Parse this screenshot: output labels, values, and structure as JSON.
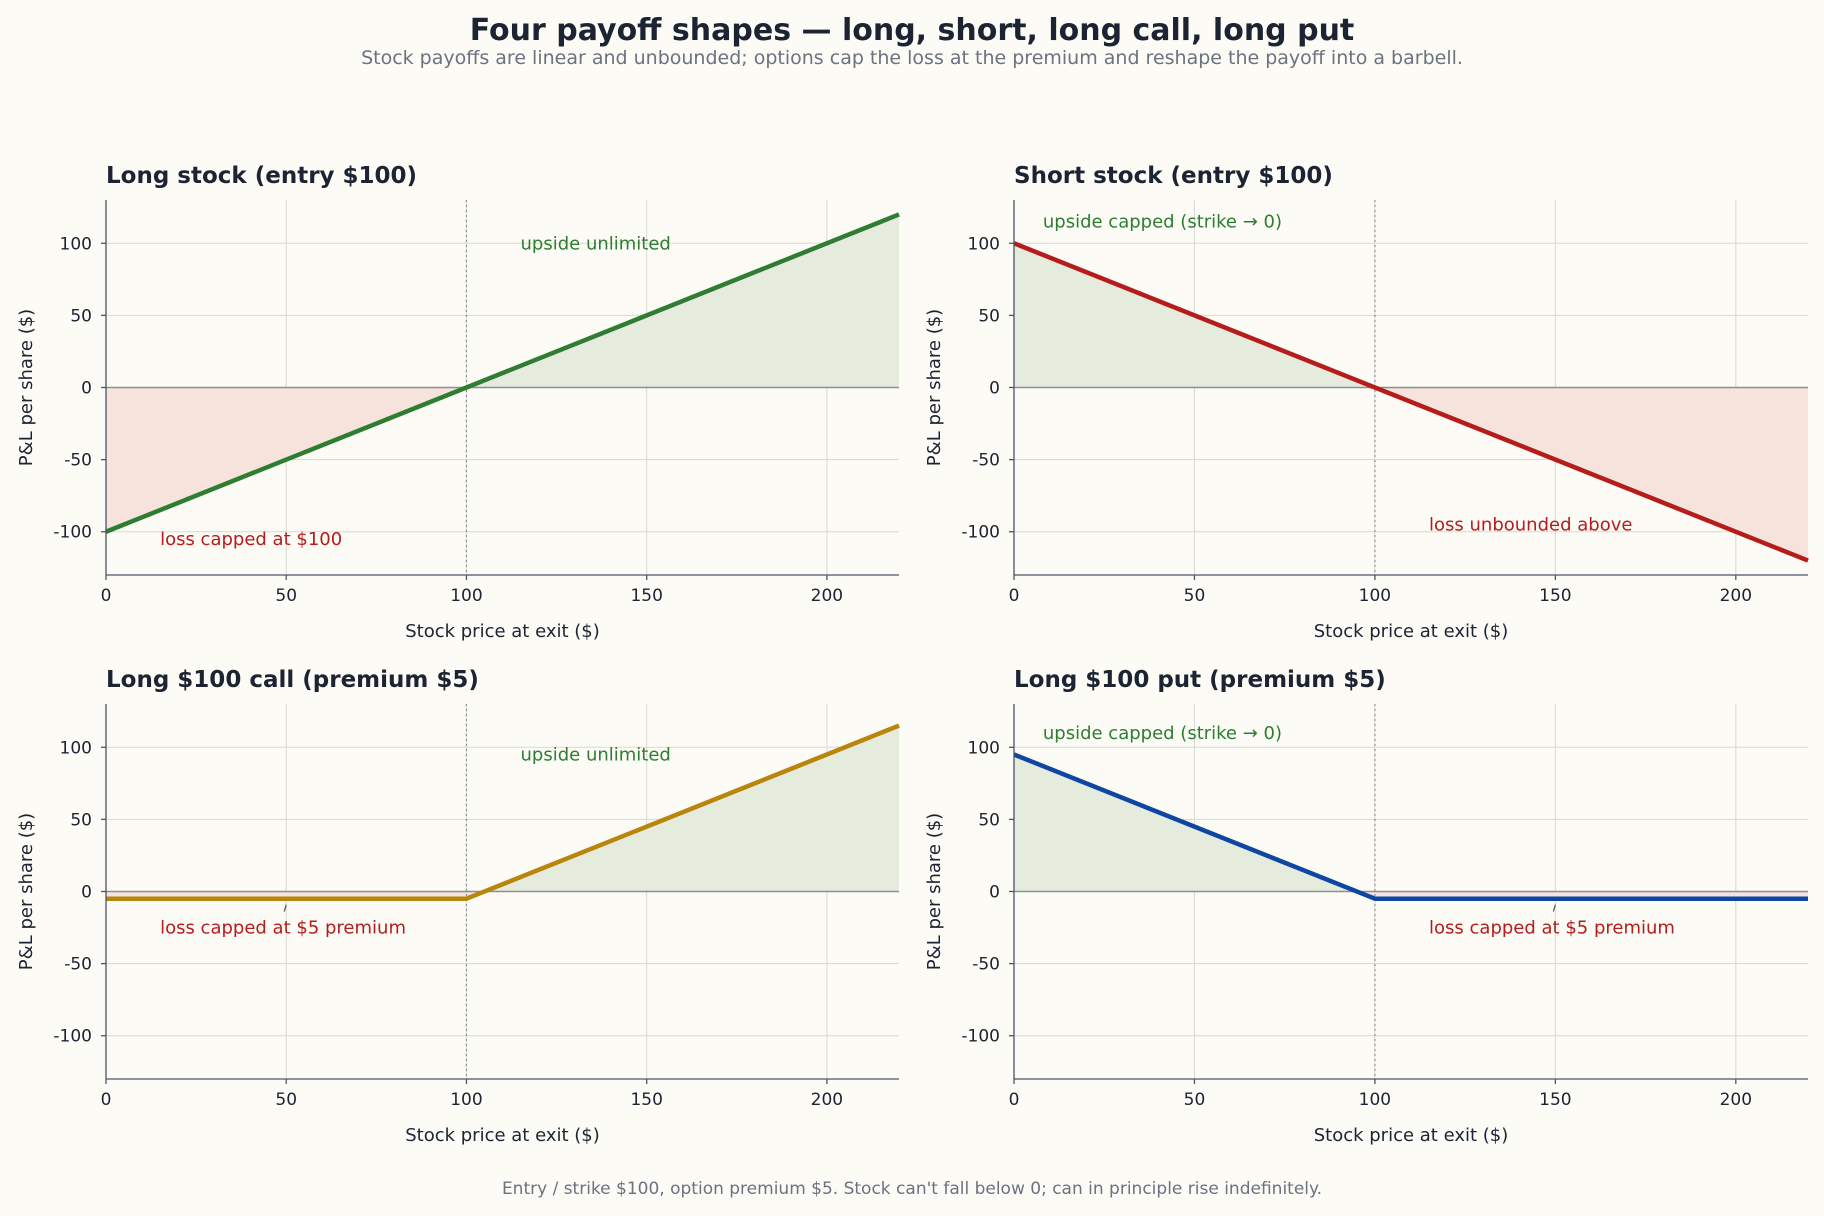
{
  "title": "Four payoff shapes — long, short, long call, long put",
  "subtitle": "Stock payoffs are linear and unbounded; options cap the loss at the premium and reshape the payoff into a barbell.",
  "footer": "Entry / strike $100, option premium $5. Stock can't fall below 0; can in principle rise indefinitely.",
  "colors": {
    "gain_fill": "#e5ecdd",
    "loss_fill": "#f6e3dc",
    "gain_text": "#2e7d32",
    "loss_text": "#b71c1c"
  },
  "chart_data": [
    {
      "type": "line",
      "title": "Long stock (entry $100)",
      "xlabel": "Stock price at exit ($)",
      "ylabel": "P&L per share ($)",
      "xlim": [
        0,
        220
      ],
      "ylim": [
        -130,
        130
      ],
      "xticks": [
        0,
        50,
        100,
        150,
        200
      ],
      "yticks": [
        -100,
        -50,
        0,
        50,
        100
      ],
      "grid": true,
      "color": "#2e7d32",
      "x": [
        0,
        100,
        220
      ],
      "y": [
        -100,
        0,
        120
      ],
      "reference_x": 100,
      "annotations": [
        {
          "text": "upside unlimited",
          "x": 115,
          "y": 100,
          "kind": "gain"
        },
        {
          "text": "loss capped at $100",
          "x": 15,
          "y": -105,
          "kind": "loss"
        }
      ]
    },
    {
      "type": "line",
      "title": "Short stock (entry $100)",
      "xlabel": "Stock price at exit ($)",
      "ylabel": "P&L per share ($)",
      "xlim": [
        0,
        220
      ],
      "ylim": [
        -130,
        130
      ],
      "xticks": [
        0,
        50,
        100,
        150,
        200
      ],
      "yticks": [
        -100,
        -50,
        0,
        50,
        100
      ],
      "grid": true,
      "color": "#b71c1c",
      "x": [
        0,
        100,
        220
      ],
      "y": [
        100,
        0,
        -120
      ],
      "reference_x": 100,
      "annotations": [
        {
          "text": "upside capped (strike → 0)",
          "x": 8,
          "y": 115,
          "kind": "gain"
        },
        {
          "text": "loss unbounded above",
          "x": 115,
          "y": -95,
          "kind": "loss"
        }
      ]
    },
    {
      "type": "line",
      "title": "Long $100 call (premium $5)",
      "xlabel": "Stock price at exit ($)",
      "ylabel": "P&L per share ($)",
      "xlim": [
        0,
        220
      ],
      "ylim": [
        -130,
        130
      ],
      "xticks": [
        0,
        50,
        100,
        150,
        200
      ],
      "yticks": [
        -100,
        -50,
        0,
        50,
        100
      ],
      "grid": true,
      "color": "#b8860b",
      "x": [
        0,
        100,
        220
      ],
      "y": [
        -5,
        -5,
        115
      ],
      "reference_x": 100,
      "annotations": [
        {
          "text": "upside unlimited",
          "x": 115,
          "y": 95,
          "kind": "gain"
        },
        {
          "text": "loss capped at $5 premium",
          "x": 15,
          "y": -25,
          "kind": "loss",
          "arrow_to": [
            50,
            -5
          ]
        }
      ]
    },
    {
      "type": "line",
      "title": "Long $100 put (premium $5)",
      "xlabel": "Stock price at exit ($)",
      "ylabel": "P&L per share ($)",
      "xlim": [
        0,
        220
      ],
      "ylim": [
        -130,
        130
      ],
      "xticks": [
        0,
        50,
        100,
        150,
        200
      ],
      "yticks": [
        -100,
        -50,
        0,
        50,
        100
      ],
      "grid": true,
      "color": "#0d47a1",
      "x": [
        0,
        100,
        220
      ],
      "y": [
        95,
        -5,
        -5
      ],
      "reference_x": 100,
      "annotations": [
        {
          "text": "upside capped (strike → 0)",
          "x": 8,
          "y": 110,
          "kind": "gain"
        },
        {
          "text": "loss capped at $5 premium",
          "x": 115,
          "y": -25,
          "kind": "loss",
          "arrow_to": [
            150,
            -5
          ]
        }
      ]
    }
  ]
}
